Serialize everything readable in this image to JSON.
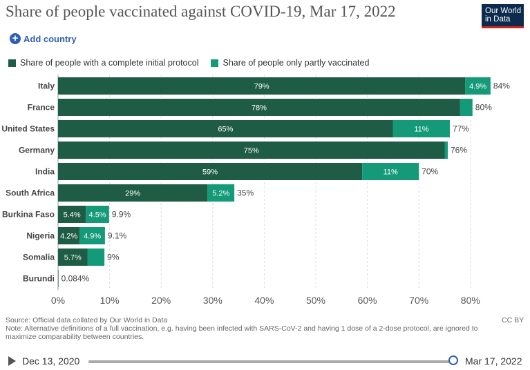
{
  "header": {
    "title": "Share of people vaccinated against COVID-19, Mar 17, 2022",
    "logo_line1": "Our World",
    "logo_line2": "in Data",
    "add_country_label": "Add country",
    "add_icon": "plus-circle-icon"
  },
  "footer": {
    "source": "Source: Official data collated by Our World in Data",
    "note": "Note: Alternative definitions of a full vaccination, e.g. having been infected with SARS-CoV-2 and having 1 dose of a 2-dose protocol, are ignored to maximize comparability between countries.",
    "license": "CC BY"
  },
  "timeline": {
    "start_date": "Dec 13, 2020",
    "end_date": "Mar 17, 2022",
    "play_icon": "play-icon",
    "position": 1.0
  },
  "colors": {
    "complete": "#1f5c45",
    "partial": "#149a78",
    "accent": "#2f5fb3"
  },
  "chart_data": {
    "type": "bar",
    "orientation": "horizontal",
    "stacked": true,
    "title": "Share of people vaccinated against COVID-19, Mar 17, 2022",
    "categories": [
      "Italy",
      "France",
      "United States",
      "Germany",
      "India",
      "South Africa",
      "Burkina Faso",
      "Nigeria",
      "Somalia",
      "Burundi"
    ],
    "series": [
      {
        "name": "Share of people with a complete initial protocol",
        "color": "#1f5c45",
        "values": [
          79,
          78,
          65,
          75,
          59,
          29,
          5.4,
          4.2,
          5.7,
          0.084
        ],
        "labels": [
          "79%",
          "78%",
          "65%",
          "75%",
          "59%",
          "29%",
          "5.4%",
          "4.2%",
          "5.7%",
          ""
        ]
      },
      {
        "name": "Share of people only partly vaccinated",
        "color": "#149a78",
        "values": [
          4.9,
          2.4,
          11,
          0.6,
          11,
          5.2,
          4.5,
          4.9,
          3.3,
          0
        ],
        "labels": [
          "4.9%",
          "",
          "11%",
          "",
          "11%",
          "5.2%",
          "4.5%",
          "4.9%",
          "",
          ""
        ]
      }
    ],
    "totals": [
      "84%",
      "80%",
      "77%",
      "76%",
      "70%",
      "35%",
      "9.9%",
      "9.1%",
      "9%",
      "0.084%"
    ],
    "xlim": [
      0,
      85
    ],
    "xticks": [
      0,
      10,
      20,
      30,
      40,
      50,
      60,
      70,
      80
    ],
    "xtick_labels": [
      "0%",
      "10%",
      "20%",
      "30%",
      "40%",
      "50%",
      "60%",
      "70%",
      "80%"
    ],
    "grid": true,
    "legend_position": "top-left"
  }
}
